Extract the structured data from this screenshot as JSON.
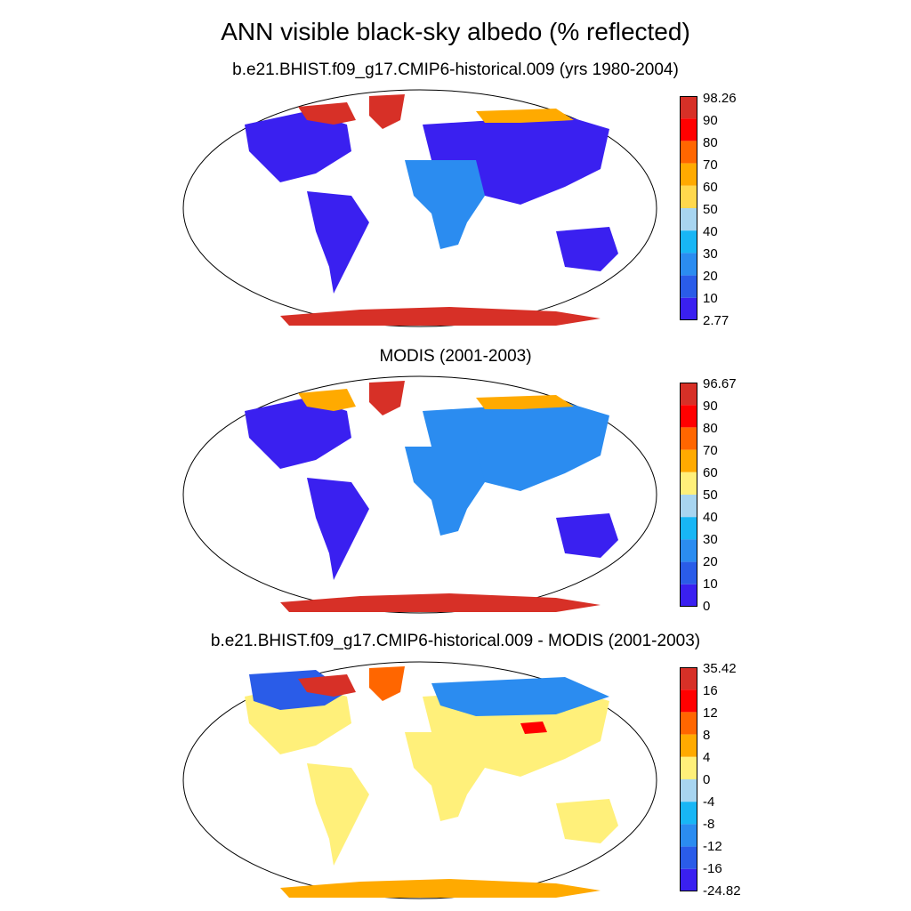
{
  "title": "ANN visible black-sky albedo (% reflected)",
  "panels": [
    {
      "subtitle": "b.e21.BHIST.f09_g17.CMIP6-historical.009 (yrs 1980-2004)",
      "colorbar_labels": [
        "98.26",
        "90",
        "80",
        "70",
        "60",
        "50",
        "40",
        "30",
        "20",
        "10",
        "2.77"
      ],
      "colors": [
        "#d73027",
        "#ff0000",
        "#ff6600",
        "#ffaa00",
        "#ffd84d",
        "#a8d5f0",
        "#18b6f5",
        "#2b8cf0",
        "#2a5ce8",
        "#3a20f0"
      ]
    },
    {
      "subtitle": "MODIS (2001-2003)",
      "colorbar_labels": [
        "96.67",
        "90",
        "80",
        "70",
        "60",
        "50",
        "40",
        "30",
        "20",
        "10",
        "0"
      ],
      "colors": [
        "#d73027",
        "#ff0000",
        "#ff6600",
        "#ffaa00",
        "#fff07a",
        "#a8d5f0",
        "#18b6f5",
        "#2b8cf0",
        "#2a5ce8",
        "#3a20f0"
      ]
    },
    {
      "subtitle": "b.e21.BHIST.f09_g17.CMIP6-historical.009 - MODIS (2001-2003)",
      "colorbar_labels": [
        "35.42",
        "16",
        "12",
        "8",
        "4",
        "0",
        "-4",
        "-8",
        "-12",
        "-16",
        "-24.82"
      ],
      "colors": [
        "#d73027",
        "#ff0000",
        "#ff6600",
        "#ffaa00",
        "#fff07a",
        "#a8d5f0",
        "#18b6f5",
        "#2b8cf0",
        "#2a5ce8",
        "#3a20f0"
      ]
    }
  ]
}
